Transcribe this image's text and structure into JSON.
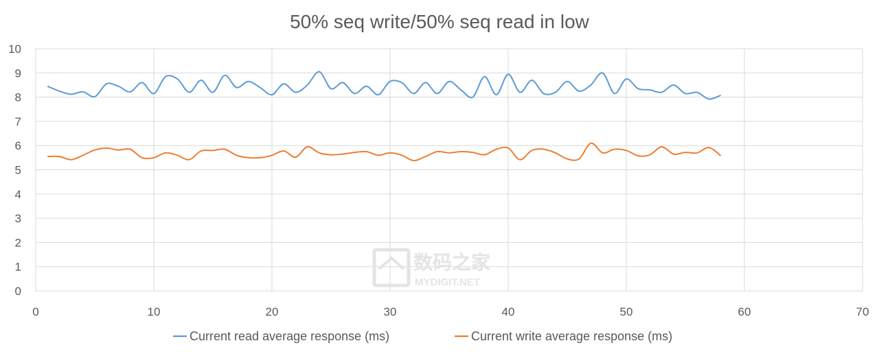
{
  "chart_data": {
    "type": "line",
    "title": "50% seq write/50% seq read in low",
    "xlabel": "",
    "ylabel": "",
    "xlim": [
      0,
      70
    ],
    "ylim": [
      0,
      10
    ],
    "x_ticks": [
      0,
      10,
      20,
      30,
      40,
      50,
      60,
      70
    ],
    "y_ticks": [
      0,
      1,
      2,
      3,
      4,
      5,
      6,
      7,
      8,
      9,
      10
    ],
    "grid": true,
    "legend_position": "bottom",
    "x": [
      1,
      2,
      3,
      4,
      5,
      6,
      7,
      8,
      9,
      10,
      11,
      12,
      13,
      14,
      15,
      16,
      17,
      18,
      19,
      20,
      21,
      22,
      23,
      24,
      25,
      26,
      27,
      28,
      29,
      30,
      31,
      32,
      33,
      34,
      35,
      36,
      37,
      38,
      39,
      40,
      41,
      42,
      43,
      44,
      45,
      46,
      47,
      48,
      49,
      50,
      51,
      52,
      53,
      54,
      55,
      56,
      57,
      58
    ],
    "series": [
      {
        "name": "Current read average response (ms)",
        "color": "#5b9bd5",
        "values": [
          8.45,
          8.25,
          8.12,
          8.22,
          8.02,
          8.55,
          8.45,
          8.22,
          8.6,
          8.15,
          8.85,
          8.75,
          8.2,
          8.7,
          8.2,
          8.9,
          8.4,
          8.65,
          8.4,
          8.1,
          8.55,
          8.2,
          8.5,
          9.05,
          8.35,
          8.6,
          8.15,
          8.45,
          8.1,
          8.65,
          8.6,
          8.15,
          8.6,
          8.15,
          8.65,
          8.3,
          8.0,
          8.85,
          8.1,
          8.95,
          8.2,
          8.7,
          8.15,
          8.2,
          8.65,
          8.25,
          8.5,
          9.0,
          8.15,
          8.75,
          8.35,
          8.3,
          8.2,
          8.5,
          8.15,
          8.2,
          7.92,
          8.08
        ]
      },
      {
        "name": "Current write average response (ms)",
        "color": "#ed7d31",
        "values": [
          5.55,
          5.55,
          5.42,
          5.6,
          5.82,
          5.9,
          5.82,
          5.85,
          5.5,
          5.5,
          5.7,
          5.6,
          5.42,
          5.78,
          5.8,
          5.85,
          5.6,
          5.5,
          5.5,
          5.6,
          5.78,
          5.52,
          5.95,
          5.7,
          5.62,
          5.65,
          5.72,
          5.75,
          5.6,
          5.7,
          5.6,
          5.38,
          5.55,
          5.75,
          5.7,
          5.75,
          5.72,
          5.62,
          5.85,
          5.9,
          5.42,
          5.8,
          5.85,
          5.7,
          5.45,
          5.45,
          6.1,
          5.7,
          5.85,
          5.8,
          5.58,
          5.62,
          5.95,
          5.65,
          5.72,
          5.7,
          5.92,
          5.58
        ]
      }
    ]
  },
  "watermark": {
    "text": "数码之家",
    "subtext": "MYDIGIT.NET"
  }
}
